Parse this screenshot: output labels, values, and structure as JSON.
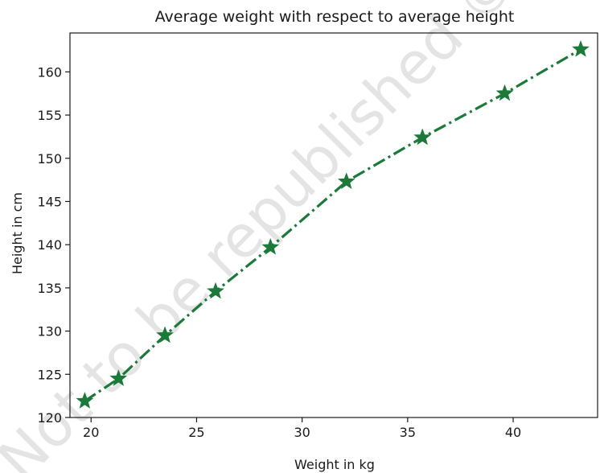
{
  "chart_data": {
    "type": "line",
    "title": "Average weight with respect to average height",
    "xlabel": "Weight in kg",
    "ylabel": "Height in cm",
    "xlim": [
      19,
      44
    ],
    "ylim": [
      120,
      164.5
    ],
    "xticks": [
      20,
      25,
      30,
      35,
      40
    ],
    "yticks": [
      120,
      125,
      130,
      135,
      140,
      145,
      150,
      155,
      160
    ],
    "grid": false,
    "series": [
      {
        "color": "#1b7a3a",
        "line_style": "dash-dot",
        "marker": "star",
        "x": [
          19.7,
          21.3,
          23.5,
          25.9,
          28.5,
          32.1,
          35.7,
          39.6,
          43.2
        ],
        "y": [
          121.9,
          124.5,
          129.5,
          134.6,
          139.7,
          147.3,
          152.4,
          157.5,
          162.6
        ]
      }
    ]
  },
  "watermark": "Not to be republished © NCERT"
}
